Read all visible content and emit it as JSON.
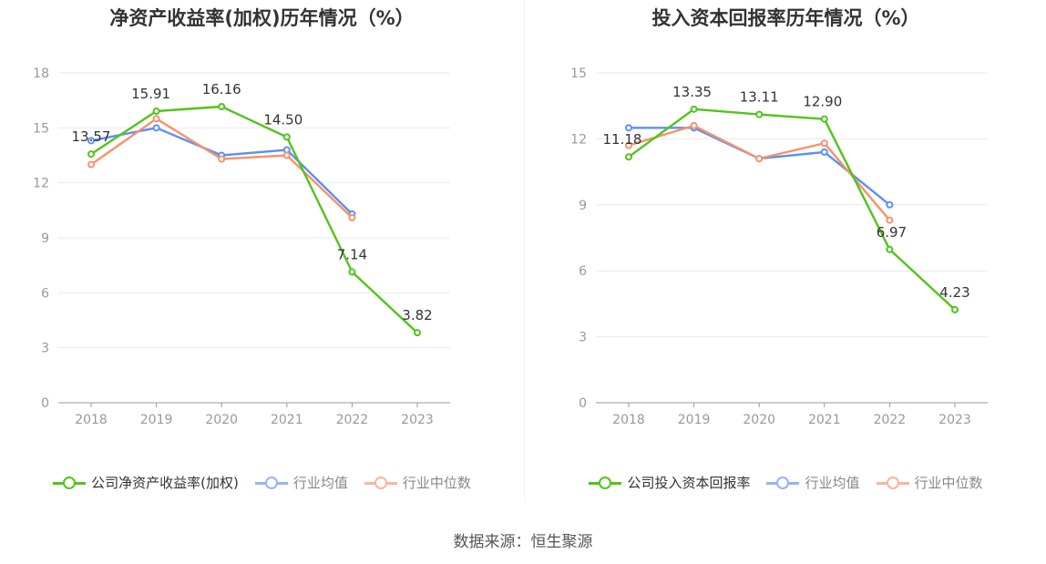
{
  "source": "数据来源：恒生聚源",
  "chart_data": [
    {
      "type": "line",
      "title": "净资产收益率(加权)历年情况（%）",
      "categories": [
        "2018",
        "2019",
        "2020",
        "2021",
        "2022",
        "2023"
      ],
      "ylim": [
        0,
        18
      ],
      "yticks": [
        0,
        3,
        6,
        9,
        12,
        15,
        18
      ],
      "grid": true,
      "legend_position": "bottom-center",
      "series": [
        {
          "name": "公司净资产收益率(加权)",
          "color": "#52c41a",
          "values": [
            13.57,
            15.91,
            16.16,
            14.5,
            7.14,
            3.82
          ],
          "labels": [
            "13.57",
            "15.91",
            "16.16",
            "14.50",
            "7.14",
            "3.82"
          ]
        },
        {
          "name": "行业均值",
          "color": "#5b8ff9",
          "values": [
            14.3,
            15.0,
            13.5,
            13.8,
            10.3,
            null
          ]
        },
        {
          "name": "行业中位数",
          "color": "#f6926a",
          "values": [
            13.0,
            15.5,
            13.3,
            13.5,
            10.1,
            null
          ]
        }
      ]
    },
    {
      "type": "line",
      "title": "投入资本回报率历年情况（%）",
      "categories": [
        "2018",
        "2019",
        "2020",
        "2021",
        "2022",
        "2023"
      ],
      "ylim": [
        0,
        15
      ],
      "yticks": [
        0,
        3,
        6,
        9,
        12,
        15
      ],
      "grid": true,
      "legend_position": "bottom-center",
      "series": [
        {
          "name": "公司投入资本回报率",
          "color": "#52c41a",
          "values": [
            11.18,
            13.35,
            13.11,
            12.9,
            6.97,
            4.23
          ],
          "labels": [
            "11.18",
            "13.35",
            "13.11",
            "12.90",
            "6.97",
            "4.23"
          ]
        },
        {
          "name": "行业均值",
          "color": "#5b8ff9",
          "values": [
            12.5,
            12.5,
            11.1,
            11.4,
            9.0,
            null
          ]
        },
        {
          "name": "行业中位数",
          "color": "#f6926a",
          "values": [
            11.7,
            12.6,
            11.1,
            11.8,
            8.3,
            null
          ]
        }
      ]
    }
  ]
}
